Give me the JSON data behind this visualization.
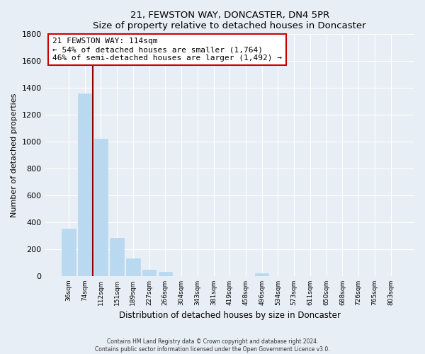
{
  "title": "21, FEWSTON WAY, DONCASTER, DN4 5PR",
  "subtitle": "Size of property relative to detached houses in Doncaster",
  "xlabel": "Distribution of detached houses by size in Doncaster",
  "ylabel": "Number of detached properties",
  "bar_labels": [
    "36sqm",
    "74sqm",
    "112sqm",
    "151sqm",
    "189sqm",
    "227sqm",
    "266sqm",
    "304sqm",
    "343sqm",
    "381sqm",
    "419sqm",
    "458sqm",
    "496sqm",
    "534sqm",
    "573sqm",
    "611sqm",
    "650sqm",
    "688sqm",
    "726sqm",
    "765sqm",
    "803sqm"
  ],
  "bar_values": [
    355,
    1360,
    1020,
    285,
    130,
    45,
    30,
    0,
    0,
    0,
    0,
    0,
    20,
    0,
    0,
    0,
    0,
    0,
    0,
    0,
    0
  ],
  "bar_color": "#b8d9f0",
  "property_line_color": "#8b0000",
  "annotation_line1": "21 FEWSTON WAY: 114sqm",
  "annotation_line2": "← 54% of detached houses are smaller (1,764)",
  "annotation_line3": "46% of semi-detached houses are larger (1,492) →",
  "annotation_box_color": "#ffffff",
  "annotation_box_edge_color": "#cc0000",
  "footer_line1": "Contains HM Land Registry data © Crown copyright and database right 2024.",
  "footer_line2": "Contains public sector information licensed under the Open Government Licence v3.0.",
  "ylim": [
    0,
    1800
  ],
  "background_color": "#e8eef5",
  "plot_background": "#e8eef5",
  "grid_color": "#ffffff"
}
